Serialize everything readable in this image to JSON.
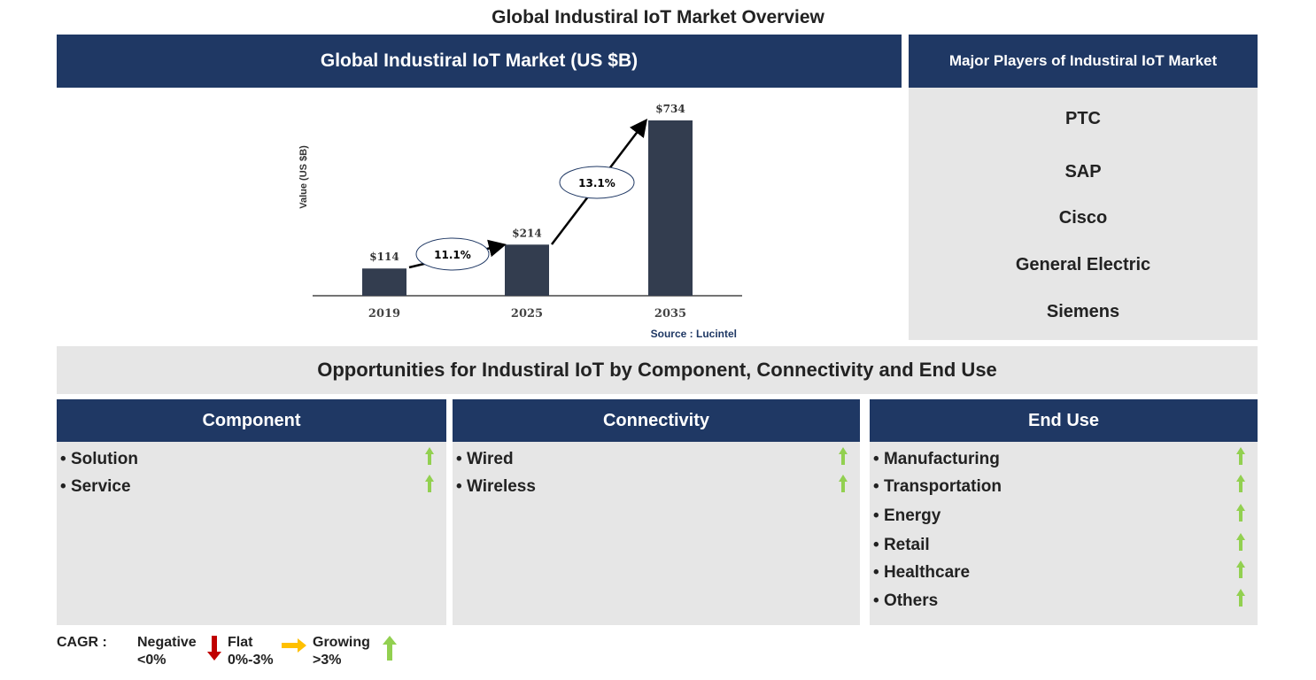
{
  "title": "Global Industiral IoT Market Overview",
  "chart_header": "Global Industiral IoT Market (US $B)",
  "chart_data": {
    "type": "bar",
    "title": "Global Industiral IoT Market (US $B)",
    "categories": [
      "2019",
      "2025",
      "2035"
    ],
    "values": [
      114,
      214,
      734
    ],
    "value_labels": [
      "$114",
      "$214",
      "$734"
    ],
    "ylabel": "Value (US $B)",
    "cagr_annotations": [
      {
        "from": "2019",
        "to": "2025",
        "label": "11.1%"
      },
      {
        "from": "2025",
        "to": "2035",
        "label": "13.1%"
      }
    ],
    "source": "Source : Lucintel",
    "bar_color": "#333d4f",
    "grid": false
  },
  "players": {
    "header": "Major Players of Industiral IoT Market",
    "items": [
      "PTC",
      "SAP",
      "Cisco",
      "General Electric",
      "Siemens"
    ]
  },
  "opportunities_title": "Opportunities for Industiral IoT by Component, Connectivity and End Use",
  "segments": [
    {
      "title": "Component",
      "items": [
        "Solution",
        "Service"
      ]
    },
    {
      "title": "Connectivity",
      "items": [
        "Wired",
        "Wireless"
      ]
    },
    {
      "title": "End Use",
      "items": [
        "Manufacturing",
        "Transportation",
        "Energy",
        "Retail",
        "Healthcare",
        "Others"
      ]
    }
  ],
  "legend": {
    "label": "CAGR :",
    "negative": [
      "Negative",
      "<0%"
    ],
    "flat": [
      "Flat",
      "0%-3%"
    ],
    "growing": [
      "Growing",
      ">3%"
    ],
    "colors": {
      "negative": "#c00000",
      "flat": "#ffc000",
      "growing": "#92d050"
    }
  },
  "colors": {
    "header": "#1f3864",
    "panel": "#e6e6e6"
  }
}
